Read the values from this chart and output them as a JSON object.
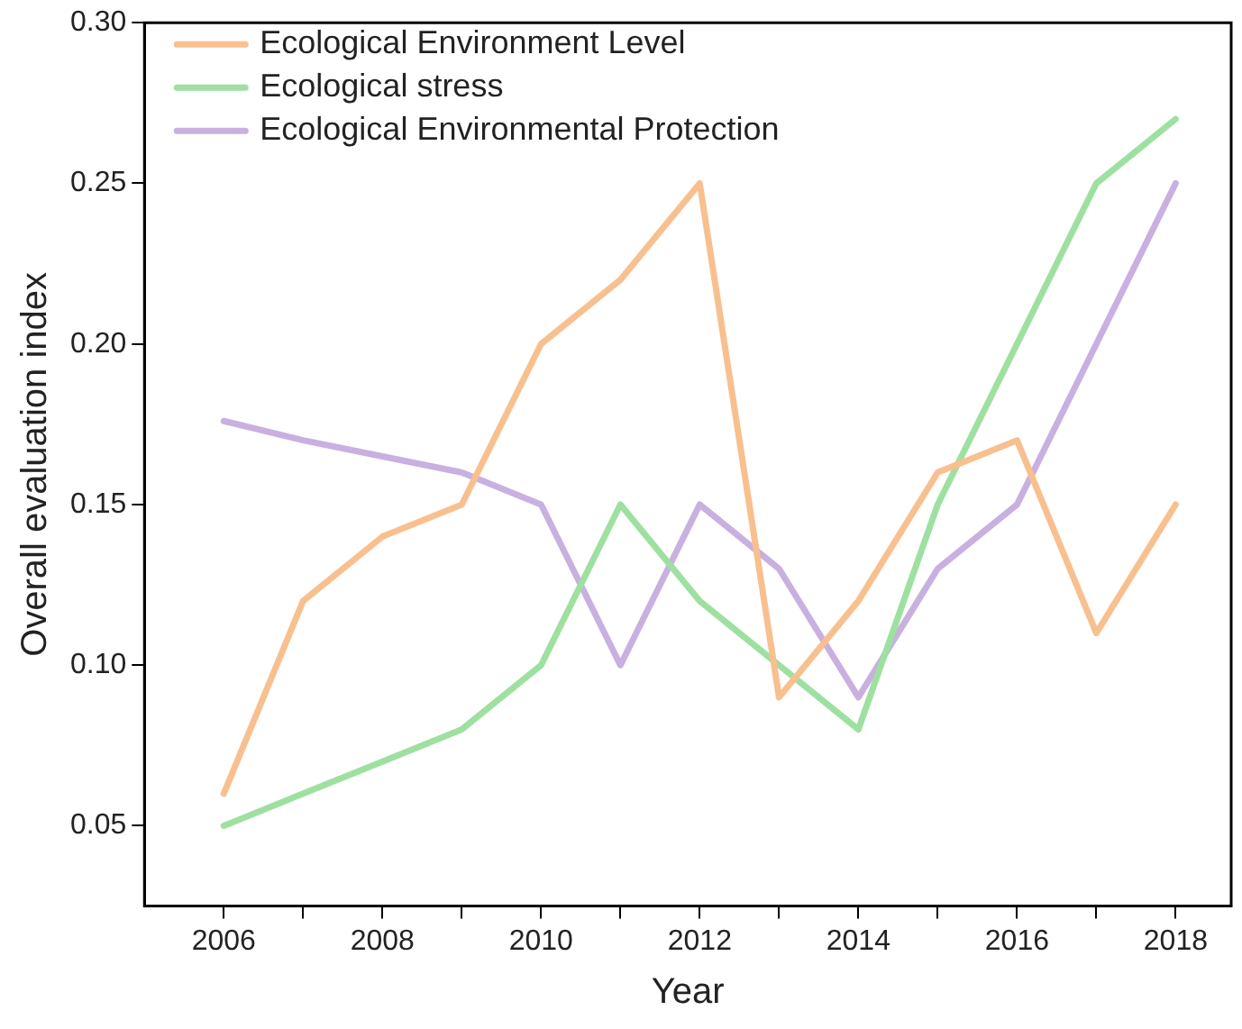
{
  "chart_data": {
    "type": "line",
    "xlabel": "Year",
    "ylabel": "Overall evaluation index",
    "x": [
      2006,
      2007,
      2008,
      2009,
      2010,
      2011,
      2012,
      2013,
      2014,
      2015,
      2016,
      2017,
      2018
    ],
    "series": [
      {
        "name": "Ecological Environment Level",
        "color": "#f8c08f",
        "values": [
          0.06,
          0.12,
          0.14,
          0.15,
          0.2,
          0.22,
          0.25,
          0.09,
          0.12,
          0.16,
          0.17,
          0.11,
          0.15
        ]
      },
      {
        "name": "Ecological stress",
        "color": "#9ee0a0",
        "values": [
          0.05,
          0.06,
          0.07,
          0.08,
          0.1,
          0.15,
          0.12,
          0.1,
          0.08,
          0.15,
          0.2,
          0.25,
          0.27
        ]
      },
      {
        "name": "Ecological Environmental Protection",
        "color": "#c8b0e0",
        "values": [
          0.176,
          0.17,
          0.165,
          0.16,
          0.15,
          0.1,
          0.15,
          0.13,
          0.09,
          0.13,
          0.15,
          0.2,
          0.25
        ]
      }
    ],
    "xlim": [
      2005,
      2018.7
    ],
    "xticks": [
      2006,
      {
        "value": 2007,
        "label": null
      },
      2008,
      {
        "value": 2009,
        "label": null
      },
      2010,
      {
        "value": 2011,
        "label": null
      },
      2012,
      {
        "value": 2013,
        "label": null
      },
      2014,
      {
        "value": 2015,
        "label": null
      },
      2016,
      {
        "value": 2017,
        "label": null
      },
      2018
    ],
    "ylim": [
      0.025,
      0.3
    ],
    "yticks": [
      {
        "value": 0.05,
        "label": "0.05"
      },
      {
        "value": 0.1,
        "label": "0.10"
      },
      {
        "value": 0.15,
        "label": "0.15"
      },
      {
        "value": 0.2,
        "label": "0.20"
      },
      {
        "value": 0.25,
        "label": "0.25"
      },
      {
        "value": 0.3,
        "label": "0.30"
      }
    ],
    "grid": false,
    "legend": "top left",
    "marker": "none",
    "line_style": "solid"
  }
}
